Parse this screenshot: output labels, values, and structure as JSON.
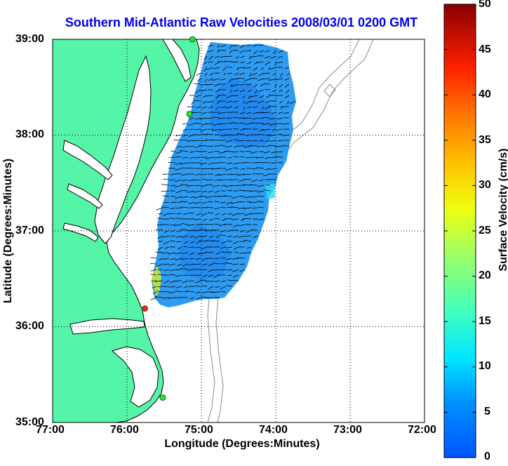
{
  "title": "Southern Mid-Atlantic Raw Velocities 2008/03/01 0200 GMT",
  "xlabel": "Longitude (Degrees:Minutes)",
  "ylabel": "Latitude (Degrees:Minutes)",
  "colorbar_label": "Surface Velocity (cm/s)",
  "x_ticks": [
    "77:00",
    "76:00",
    "75:00",
    "74:00",
    "73:00",
    "72:00"
  ],
  "y_ticks": [
    "39:00",
    "38:00",
    "37:00",
    "36:00",
    "35:00"
  ],
  "colorbar_ticks": [
    "50",
    "45",
    "40",
    "35",
    "30",
    "25",
    "20",
    "15",
    "10",
    "5",
    "0"
  ],
  "colors": {
    "land": "#55f5a8",
    "water_background": "#ffffff",
    "velocity_field": "#2e9bf0",
    "velocity_field_dark": "#1f82ee",
    "vectors": "#000000",
    "bathymetry": "#8a8a8a",
    "coastline": "#000000",
    "title": "#0000ee"
  },
  "chart_data": {
    "type": "map",
    "x_axis": {
      "label": "Longitude (Degrees:Minutes)",
      "range": [
        -77,
        -72
      ]
    },
    "y_axis": {
      "label": "Latitude (Degrees:Minutes)",
      "range": [
        35,
        39
      ]
    },
    "grid": true,
    "colorbar": {
      "label": "Surface Velocity (cm/s)",
      "range": [
        0,
        50
      ],
      "step": 5,
      "placement": "right"
    },
    "stations": [
      {
        "lon": -75.12,
        "lat": 39.0,
        "color": "green"
      },
      {
        "lon": -75.16,
        "lat": 38.22,
        "color": "green"
      },
      {
        "lon": -75.76,
        "lat": 36.19,
        "color": "red"
      },
      {
        "lon": -75.52,
        "lat": 35.26,
        "color": "green"
      }
    ]
  }
}
